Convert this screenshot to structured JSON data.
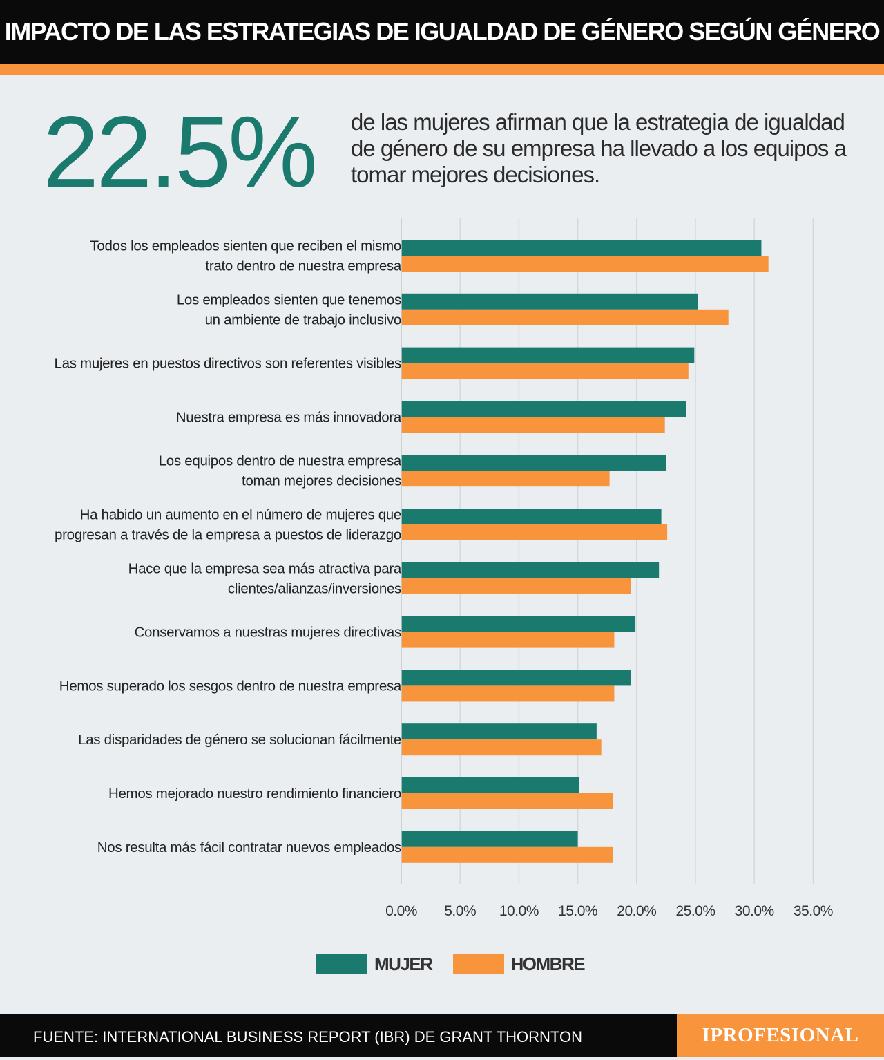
{
  "header": {
    "title": "IMPACTO DE LAS ESTRATEGIAS DE IGUALDAD DE GÉNERO SEGÚN GÉNERO"
  },
  "highlight": {
    "value": "22.5%",
    "text": "de las mujeres afirman que la estrategia de igualdad de género de su empresa ha llevado a los equipos a tomar mejores decisiones."
  },
  "chart_data": {
    "type": "bar",
    "orientation": "horizontal",
    "categories": [
      [
        "Todos los empleados sienten que reciben el mismo",
        "trato dentro de nuestra empresa"
      ],
      [
        "Los empleados sienten que tenemos",
        "un ambiente de trabajo inclusivo"
      ],
      [
        "Las mujeres en puestos directivos son referentes visibles"
      ],
      [
        "Nuestra empresa es más innovadora"
      ],
      [
        "Los equipos dentro de nuestra empresa",
        "toman mejores decisiones"
      ],
      [
        "Ha habido un aumento en el número de mujeres que",
        "progresan a través de la empresa a puestos de liderazgo"
      ],
      [
        "Hace que la empresa sea más atractiva para",
        "clientes/alianzas/inversiones"
      ],
      [
        "Conservamos a nuestras mujeres directivas"
      ],
      [
        "Hemos superado los sesgos dentro de nuestra empresa"
      ],
      [
        "Las disparidades de género se solucionan fácilmente"
      ],
      [
        "Hemos mejorado nuestro rendimiento financiero"
      ],
      [
        "Nos resulta más fácil contratar nuevos empleados"
      ]
    ],
    "series": [
      {
        "name": "MUJER",
        "color": "#1a7a6d",
        "values": [
          30.6,
          25.2,
          24.9,
          24.2,
          22.5,
          22.1,
          21.9,
          19.9,
          19.5,
          16.6,
          15.1,
          15.0
        ]
      },
      {
        "name": "HOMBRE",
        "color": "#f7943c",
        "values": [
          31.2,
          27.8,
          24.4,
          22.4,
          17.7,
          22.6,
          19.5,
          18.1,
          18.1,
          17.0,
          18.0,
          18.0
        ]
      }
    ],
    "xlim": [
      0,
      35
    ],
    "xticks": [
      "0.0%",
      "5.0%",
      "10.0%",
      "15.0%",
      "20.0%",
      "25.0%",
      "30.0%",
      "35.0%"
    ],
    "grid": true,
    "legend": "bottom-center"
  },
  "legend": {
    "mujer": "MUJER",
    "hombre": "HOMBRE"
  },
  "footer": {
    "source": "FUENTE: INTERNATIONAL BUSINESS REPORT (IBR)  DE GRANT THORNTON",
    "brand": "IPROFESIONAL"
  }
}
